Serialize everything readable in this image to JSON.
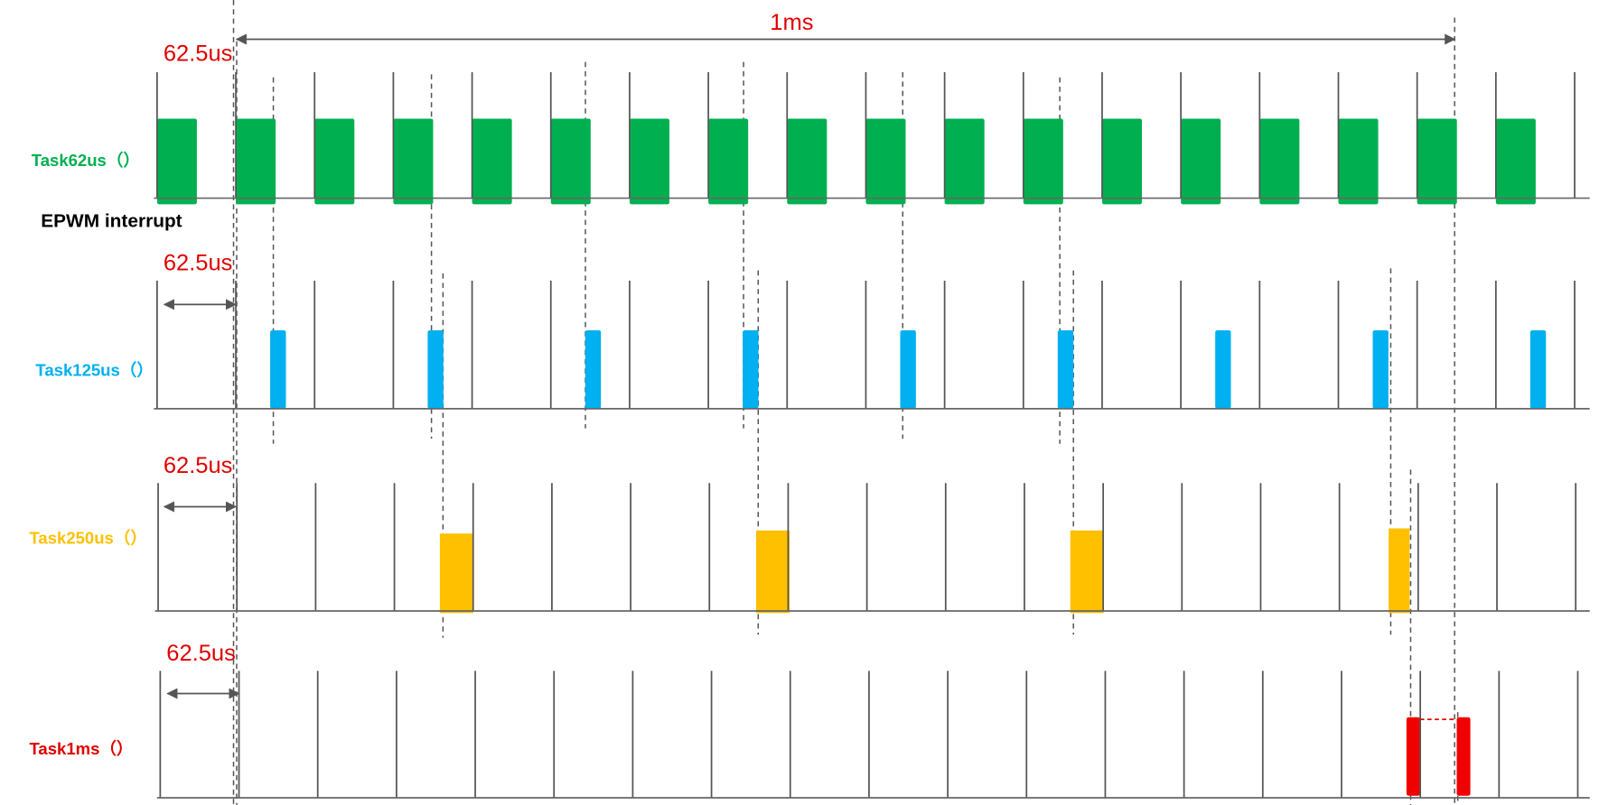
{
  "span_label": "1ms",
  "note": "EPWM interrupt",
  "rows": [
    {
      "name": "Task62us（）",
      "period_label": "62.5us"
    },
    {
      "name": "Task125us（）",
      "period_label": "62.5us"
    },
    {
      "name": "Task250us（）",
      "period_label": "62.5us"
    },
    {
      "name": "Task1ms（）",
      "period_label": "62.5us"
    }
  ]
}
